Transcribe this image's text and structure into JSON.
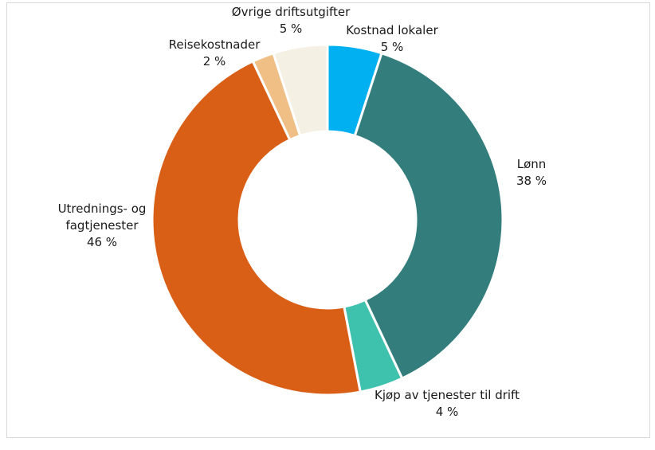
{
  "chart_data": {
    "type": "pie",
    "donut": true,
    "title": "",
    "labels": [
      "Kostnad lokaler",
      "Lønn",
      "Kjøp av tjenester til drift",
      "Utrednings- og fagtjenester",
      "Reisekostnader",
      "Øvrige driftsutgifter"
    ],
    "label_lines": [
      [
        "Kostnad lokaler"
      ],
      [
        "Lønn"
      ],
      [
        "Kjøp av tjenester til drift"
      ],
      [
        "Utrednings- og",
        "fagtjenester"
      ],
      [
        "Reisekostnader"
      ],
      [
        "Øvrige driftsutgifter"
      ]
    ],
    "values": [
      5,
      38,
      4,
      46,
      2,
      5
    ],
    "value_labels": [
      "5 %",
      "38 %",
      "4 %",
      "46 %",
      "2 %",
      "5 %"
    ],
    "colors": [
      "#00b0f0",
      "#337d7c",
      "#3fc2ad",
      "#d95f17",
      "#efbf85",
      "#f4f0e3"
    ],
    "legend": "none"
  }
}
